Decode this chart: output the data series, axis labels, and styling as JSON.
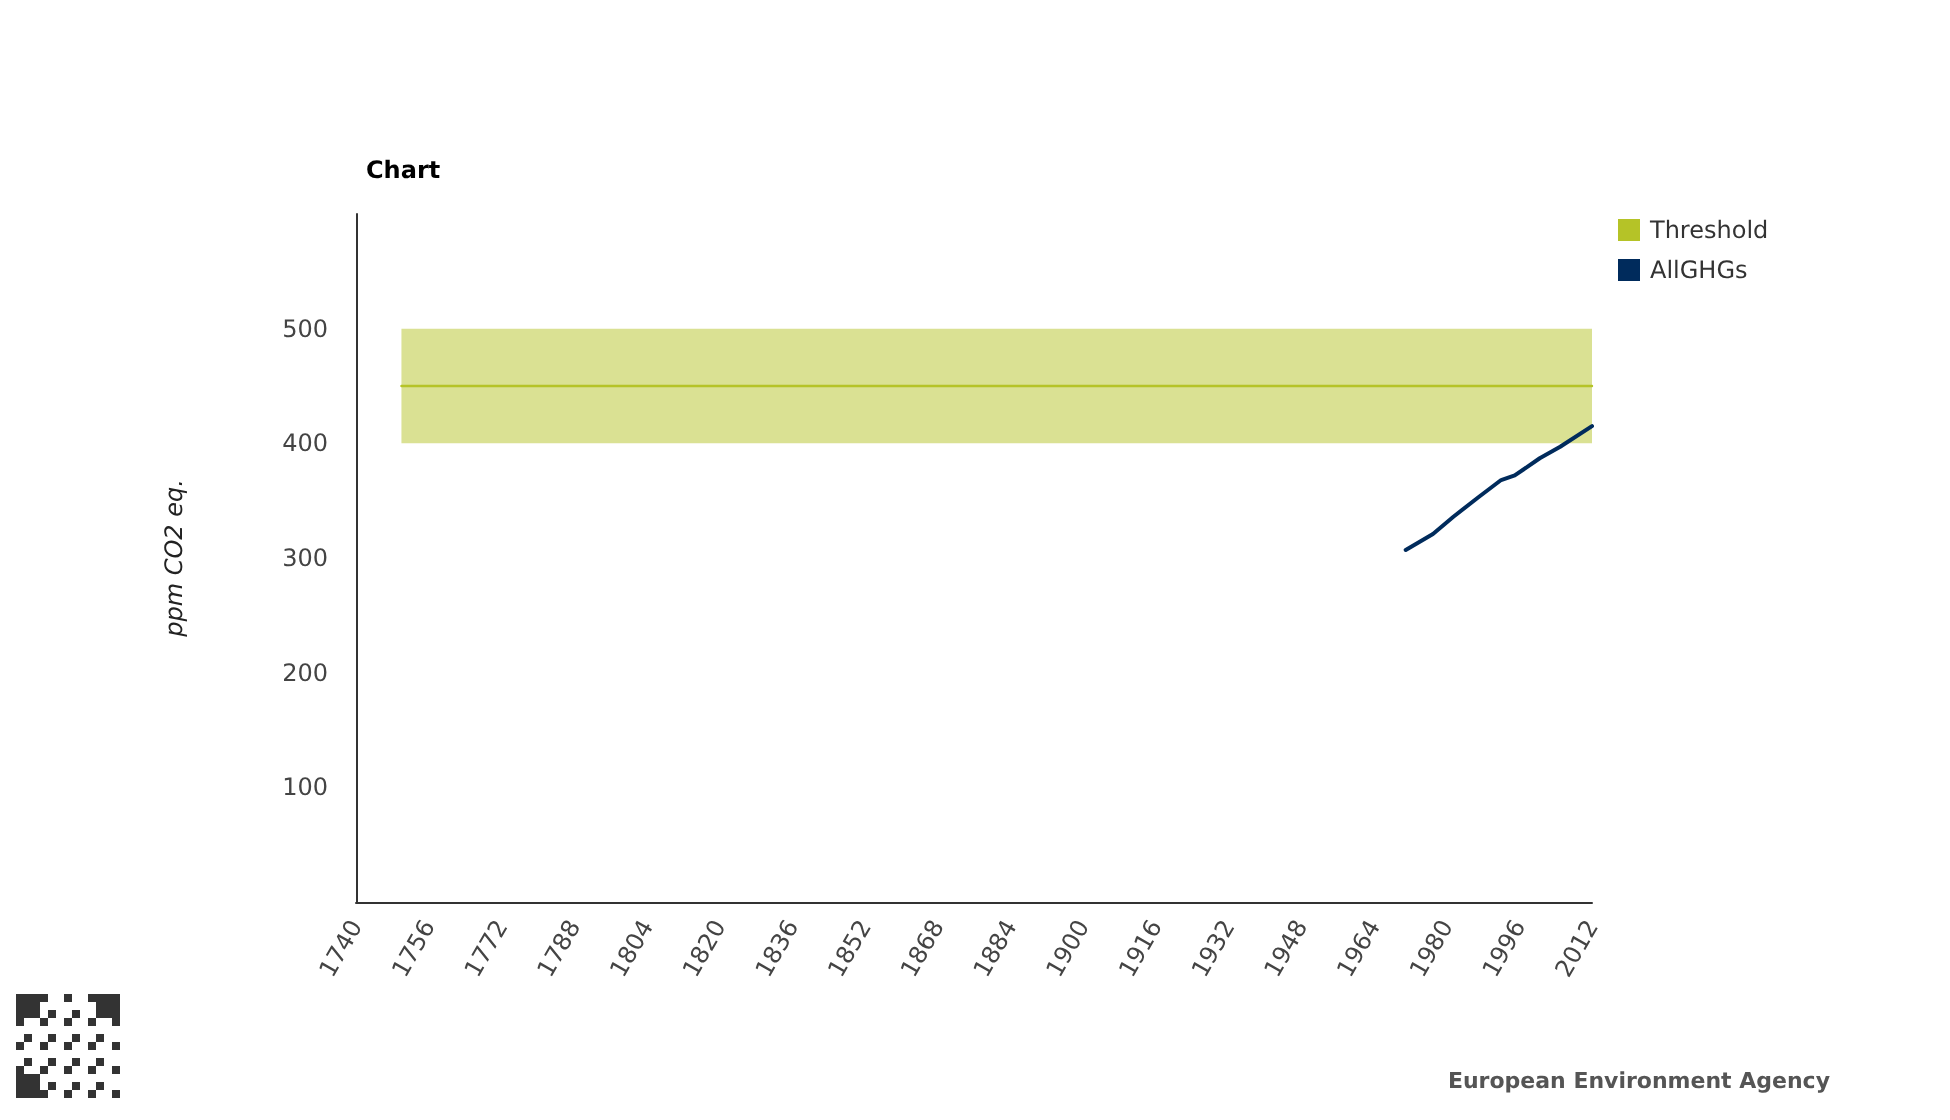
{
  "chart_data": {
    "type": "line",
    "title": "Chart",
    "ylabel": "ppm CO2 eq.",
    "xlim": [
      1740,
      2012
    ],
    "xticks": [
      1740,
      1756,
      1772,
      1788,
      1804,
      1820,
      1836,
      1852,
      1868,
      1884,
      1900,
      1916,
      1932,
      1948,
      1964,
      1980,
      1996,
      2012
    ],
    "ylim": [
      0,
      600
    ],
    "yticks": [
      100,
      200,
      300,
      400,
      500
    ],
    "series": [
      {
        "name": "Threshold",
        "color": "#b5c327",
        "x": [
          1750,
          2012
        ],
        "values": [
          450,
          450
        ],
        "lower": [
          400,
          400
        ],
        "upper": [
          500,
          500
        ]
      },
      {
        "name": "AllGHGs",
        "color": "#002b5c",
        "x": [
          1971,
          1977,
          1981.5,
          1987,
          1992,
          1995,
          2000.5,
          2005,
          2012
        ],
        "values": [
          307,
          321,
          336,
          353,
          368,
          372,
          387,
          397,
          415
        ]
      }
    ],
    "legend": "top right",
    "grid": false,
    "marker": "none",
    "line_style": "solid",
    "annotations": [
      "European Environment Agency"
    ]
  }
}
